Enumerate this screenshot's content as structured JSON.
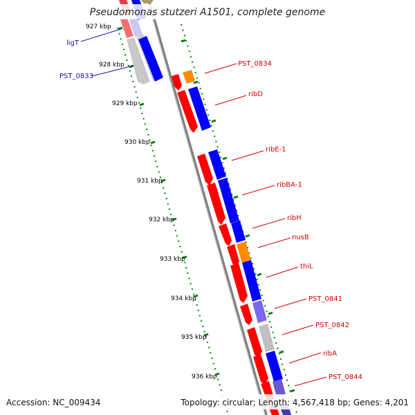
{
  "title": "Pseudomonas stutzeri A1501, complete genome",
  "footer": {
    "accession": "Accession: NC_009434",
    "summary": "Topology: circular; Length: 4,567,418 bp; Genes: 4,201"
  },
  "ticks": [
    "927 kbp",
    "928 kbp",
    "929 kbp",
    "930 kbp",
    "931 kbp",
    "932 kbp",
    "933 kbp",
    "934 kbp",
    "935 kbp",
    "936 kbp"
  ],
  "gene_labels": [
    {
      "text": "ligT",
      "color": "#1010b0"
    },
    {
      "text": "PST_0833",
      "color": "#1010b0"
    },
    {
      "text": "PST_0834",
      "color": "#d40000"
    },
    {
      "text": "ribD",
      "color": "#d40000"
    },
    {
      "text": "ribE-1",
      "color": "#d40000"
    },
    {
      "text": "ribBA-1",
      "color": "#d40000"
    },
    {
      "text": "ribH",
      "color": "#d40000"
    },
    {
      "text": "nusB",
      "color": "#d40000"
    },
    {
      "text": "thiL",
      "color": "#d40000"
    },
    {
      "text": "PST_0841",
      "color": "#d40000"
    },
    {
      "text": "PST_0842",
      "color": "#d40000"
    },
    {
      "text": "ribA",
      "color": "#d40000"
    },
    {
      "text": "PST_0844",
      "color": "#d40000"
    }
  ],
  "colors": {
    "gene_red": "#ff0000",
    "cds_blue": "#0000ff",
    "cds_orange": "#ff8c00",
    "cds_purple": "#7b68ee",
    "cds_gray": "#c0c0c0",
    "backbone": "#808080",
    "tick_green": "#008000"
  }
}
